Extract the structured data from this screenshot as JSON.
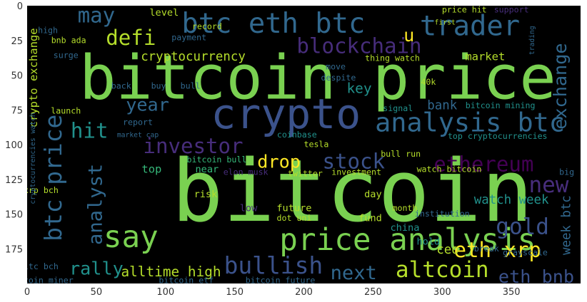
{
  "chart_data": {
    "type": "wordcloud",
    "title": "",
    "xlabel": "",
    "ylabel": "",
    "xlim": [
      0,
      400
    ],
    "ylim": [
      200,
      0
    ],
    "x_ticks": [
      0,
      50,
      100,
      150,
      200,
      250,
      300,
      350
    ],
    "y_ticks": [
      0,
      25,
      50,
      75,
      100,
      125,
      150,
      175
    ],
    "grid": false,
    "background": "#000000",
    "palette": {
      "green": "#7ad151",
      "lime": "#b5de2b",
      "yellow": "#fde725",
      "teal": "#21918c",
      "cyan": "#2a9d8f",
      "blue": "#3b528b",
      "slate": "#31688e",
      "purple": "#440154",
      "violet": "#472d7b",
      "mint": "#35b779"
    },
    "words": [
      {
        "text": "bitcoin",
        "x": 235,
        "y": 138,
        "size": 62,
        "color": "green"
      },
      {
        "text": "bitcoin price",
        "x": 210,
        "y": 55,
        "size": 44,
        "color": "green"
      },
      {
        "text": "crypto",
        "x": 187,
        "y": 80,
        "size": 30,
        "color": "blue"
      },
      {
        "text": "btc eth btc",
        "x": 178,
        "y": 14,
        "size": 20,
        "color": "slate"
      },
      {
        "text": "price analysis",
        "x": 275,
        "y": 170,
        "size": 22,
        "color": "green"
      },
      {
        "text": "analysis btc",
        "x": 320,
        "y": 85,
        "size": 19,
        "color": "slate"
      },
      {
        "text": "say",
        "x": 75,
        "y": 168,
        "size": 22,
        "color": "green"
      },
      {
        "text": "trader",
        "x": 320,
        "y": 16,
        "size": 20,
        "color": "slate"
      },
      {
        "text": "blockchain",
        "x": 240,
        "y": 30,
        "size": 15,
        "color": "violet"
      },
      {
        "text": "may",
        "x": 50,
        "y": 8,
        "size": 15,
        "color": "slate"
      },
      {
        "text": "defi",
        "x": 75,
        "y": 24,
        "size": 15,
        "color": "lime"
      },
      {
        "text": "u",
        "x": 276,
        "y": 22,
        "size": 13,
        "color": "yellow"
      },
      {
        "text": "ethereum",
        "x": 330,
        "y": 115,
        "size": 15,
        "color": "purple"
      },
      {
        "text": "new",
        "x": 377,
        "y": 130,
        "size": 16,
        "color": "violet"
      },
      {
        "text": "gold",
        "x": 358,
        "y": 160,
        "size": 16,
        "color": "blue"
      },
      {
        "text": "stock",
        "x": 236,
        "y": 113,
        "size": 15,
        "color": "blue"
      },
      {
        "text": "drop",
        "x": 182,
        "y": 113,
        "size": 13,
        "color": "yellow"
      },
      {
        "text": "investor",
        "x": 120,
        "y": 102,
        "size": 15,
        "color": "violet"
      },
      {
        "text": "hit",
        "x": 45,
        "y": 91,
        "size": 15,
        "color": "teal"
      },
      {
        "text": "year",
        "x": 87,
        "y": 72,
        "size": 13,
        "color": "slate"
      },
      {
        "text": "btc price",
        "x": 20,
        "y": 124,
        "size": 17,
        "rotate": true,
        "color": "slate"
      },
      {
        "text": "analyst",
        "x": 50,
        "y": 143,
        "size": 14,
        "rotate": true,
        "color": "slate"
      },
      {
        "text": "rally",
        "x": 50,
        "y": 190,
        "size": 13,
        "color": "teal"
      },
      {
        "text": "alltime high",
        "x": 104,
        "y": 192,
        "size": 10,
        "color": "lime"
      },
      {
        "text": "bullish",
        "x": 178,
        "y": 188,
        "size": 17,
        "color": "blue"
      },
      {
        "text": "next",
        "x": 236,
        "y": 193,
        "size": 14,
        "color": "slate"
      },
      {
        "text": "altcoin",
        "x": 300,
        "y": 191,
        "size": 16,
        "color": "lime"
      },
      {
        "text": "eth xrp",
        "x": 340,
        "y": 177,
        "size": 15,
        "color": "yellow"
      },
      {
        "text": "eth bnb",
        "x": 368,
        "y": 196,
        "size": 13,
        "color": "blue"
      },
      {
        "text": "exchange",
        "x": 386,
        "y": 58,
        "size": 13,
        "rotate": true,
        "color": "slate"
      },
      {
        "text": "cryptocurrency",
        "x": 120,
        "y": 37,
        "size": 9,
        "color": "lime"
      },
      {
        "text": "market",
        "x": 331,
        "y": 37,
        "size": 8,
        "color": "lime"
      },
      {
        "text": "key",
        "x": 240,
        "y": 60,
        "size": 10,
        "color": "teal"
      },
      {
        "text": "bank",
        "x": 300,
        "y": 72,
        "size": 9,
        "color": "slate"
      },
      {
        "text": "watch week",
        "x": 350,
        "y": 140,
        "size": 9,
        "color": "teal"
      },
      {
        "text": "week btc",
        "x": 390,
        "y": 158,
        "size": 9,
        "rotate": true,
        "color": "slate"
      },
      {
        "text": "ceo",
        "x": 304,
        "y": 176,
        "size": 9,
        "color": "lime"
      },
      {
        "text": "crypto exchange",
        "x": 5,
        "y": 52,
        "size": 8,
        "rotate": true,
        "color": "lime"
      },
      {
        "text": "level",
        "x": 99,
        "y": 5,
        "size": 7,
        "color": "lime"
      },
      {
        "text": "price hit",
        "x": 316,
        "y": 3,
        "size": 6,
        "color": "lime"
      },
      {
        "text": "signal",
        "x": 268,
        "y": 74,
        "size": 6,
        "color": "teal"
      },
      {
        "text": "bitcoin mining",
        "x": 342,
        "y": 72,
        "size": 6,
        "color": "teal"
      },
      {
        "text": "top cryptocurrencies",
        "x": 340,
        "y": 94,
        "size": 6,
        "color": "teal"
      },
      {
        "text": "bull run",
        "x": 270,
        "y": 107,
        "size": 6,
        "color": "lime"
      },
      {
        "text": "watch bitcoin",
        "x": 305,
        "y": 118,
        "size": 6,
        "color": "lime"
      },
      {
        "text": "top",
        "x": 90,
        "y": 118,
        "size": 8,
        "color": "mint"
      },
      {
        "text": "near",
        "x": 130,
        "y": 118,
        "size": 7,
        "color": "mint"
      },
      {
        "text": "bitcoin bull",
        "x": 137,
        "y": 111,
        "size": 6,
        "color": "mint"
      },
      {
        "text": "elon musk",
        "x": 158,
        "y": 120,
        "size": 6,
        "color": "violet"
      },
      {
        "text": "twitter",
        "x": 201,
        "y": 121,
        "size": 6,
        "color": "lime"
      },
      {
        "text": "investment",
        "x": 238,
        "y": 120,
        "size": 6,
        "color": "lime"
      },
      {
        "text": "tesla",
        "x": 209,
        "y": 100,
        "size": 6,
        "color": "lime"
      },
      {
        "text": "coinbase",
        "x": 195,
        "y": 93,
        "size": 6,
        "color": "teal"
      },
      {
        "text": "risk",
        "x": 129,
        "y": 136,
        "size": 7,
        "color": "lime"
      },
      {
        "text": "future",
        "x": 193,
        "y": 146,
        "size": 7,
        "color": "lime"
      },
      {
        "text": "dot uni",
        "x": 193,
        "y": 153,
        "size": 6,
        "color": "lime"
      },
      {
        "text": "low",
        "x": 160,
        "y": 146,
        "size": 7,
        "color": "violet"
      },
      {
        "text": "day",
        "x": 250,
        "y": 136,
        "size": 7,
        "color": "lime"
      },
      {
        "text": "fund",
        "x": 248,
        "y": 153,
        "size": 7,
        "color": "lime"
      },
      {
        "text": "china",
        "x": 273,
        "y": 160,
        "size": 7,
        "color": "teal"
      },
      {
        "text": "month",
        "x": 273,
        "y": 146,
        "size": 6,
        "color": "lime"
      },
      {
        "text": "hold",
        "x": 290,
        "y": 170,
        "size": 7,
        "color": "teal"
      },
      {
        "text": "xrp bch",
        "x": 10,
        "y": 133,
        "size": 6,
        "color": "lime"
      },
      {
        "text": "ltc bch",
        "x": 10,
        "y": 188,
        "size": 6,
        "color": "slate"
      },
      {
        "text": "bitcoin miner",
        "x": 10,
        "y": 198,
        "size": 6,
        "color": "slate"
      },
      {
        "text": "bitcoin etf",
        "x": 115,
        "y": 198,
        "size": 6,
        "color": "slate"
      },
      {
        "text": "bitcoin future",
        "x": 183,
        "y": 198,
        "size": 6,
        "color": "slate"
      },
      {
        "text": "bnb ada",
        "x": 30,
        "y": 25,
        "size": 6,
        "color": "lime"
      },
      {
        "text": "record",
        "x": 130,
        "y": 15,
        "size": 6,
        "color": "lime"
      },
      {
        "text": "payment",
        "x": 117,
        "y": 23,
        "size": 6,
        "color": "slate"
      },
      {
        "text": "thing watch",
        "x": 264,
        "y": 38,
        "size": 6,
        "color": "lime"
      },
      {
        "text": "despite",
        "x": 225,
        "y": 52,
        "size": 6,
        "color": "slate"
      },
      {
        "text": "move",
        "x": 223,
        "y": 44,
        "size": 6,
        "color": "slate"
      },
      {
        "text": "40k",
        "x": 290,
        "y": 55,
        "size": 6,
        "color": "lime"
      },
      {
        "text": "launch",
        "x": 28,
        "y": 76,
        "size": 6,
        "color": "lime"
      },
      {
        "text": "report",
        "x": 80,
        "y": 84,
        "size": 6,
        "color": "slate"
      },
      {
        "text": "market cap",
        "x": 80,
        "y": 93,
        "size": 5,
        "color": "slate"
      },
      {
        "text": "back",
        "x": 68,
        "y": 58,
        "size": 6,
        "color": "slate"
      },
      {
        "text": "buy",
        "x": 95,
        "y": 58,
        "size": 6,
        "color": "slate"
      },
      {
        "text": "bull",
        "x": 118,
        "y": 58,
        "size": 6,
        "color": "slate"
      },
      {
        "text": "high",
        "x": 15,
        "y": 18,
        "size": 6,
        "color": "slate"
      },
      {
        "text": "surge",
        "x": 28,
        "y": 36,
        "size": 6,
        "color": "slate"
      },
      {
        "text": "cryptocurrencies watch",
        "x": 4,
        "y": 110,
        "size": 5,
        "rotate": true,
        "color": "slate"
      },
      {
        "text": "grayscale",
        "x": 360,
        "y": 178,
        "size": 6,
        "color": "slate"
      },
      {
        "text": "institution",
        "x": 300,
        "y": 150,
        "size": 6,
        "color": "slate"
      },
      {
        "text": "big",
        "x": 390,
        "y": 120,
        "size": 6,
        "color": "slate"
      },
      {
        "text": "break",
        "x": 332,
        "y": 175,
        "size": 6,
        "color": "slate"
      },
      {
        "text": "support",
        "x": 350,
        "y": 3,
        "size": 6,
        "color": "violet"
      },
      {
        "text": "first",
        "x": 302,
        "y": 12,
        "size": 5,
        "color": "lime"
      },
      {
        "text": "trading",
        "x": 365,
        "y": 25,
        "size": 5,
        "rotate": true,
        "color": "slate"
      }
    ]
  }
}
